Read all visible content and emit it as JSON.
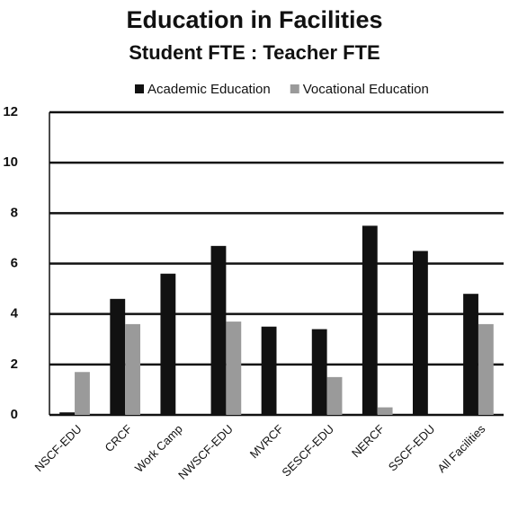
{
  "chart_data": {
    "type": "bar",
    "title": "Education in Facilities",
    "subtitle": "Student FTE : Teacher FTE",
    "categories": [
      "NSCF-EDU",
      "CRCF",
      "Work Camp",
      "NWSCF-EDU",
      "MVRCF",
      "SESCF-EDU",
      "NERCF",
      "SSCF-EDU",
      "All Facilities"
    ],
    "series": [
      {
        "name": "Academic Education",
        "color": "#111111",
        "values": [
          0.1,
          4.6,
          5.6,
          6.7,
          3.5,
          3.4,
          7.5,
          6.5,
          4.8
        ]
      },
      {
        "name": "Vocational Education",
        "color": "#9a9a9a",
        "values": [
          1.7,
          3.6,
          0,
          3.7,
          0,
          1.5,
          0.3,
          0,
          3.6
        ]
      }
    ],
    "ylim": [
      0,
      12
    ],
    "yticks": [
      0,
      2,
      4,
      6,
      8,
      10,
      12
    ],
    "grid": true,
    "legend": "top"
  }
}
